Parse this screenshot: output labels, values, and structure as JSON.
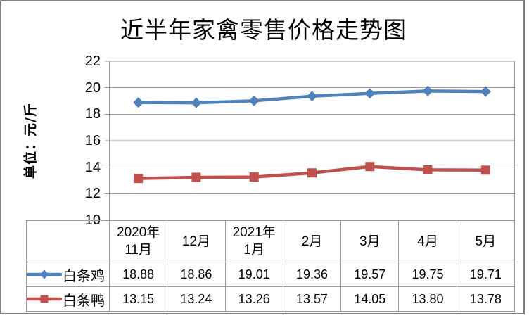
{
  "chart_data": {
    "type": "line",
    "title": "近半年家禽零售价格走势图",
    "ylabel": "单位：元/斤",
    "categories": [
      "2020年11月",
      "12月",
      "2021年1月",
      "2月",
      "3月",
      "4月",
      "5月"
    ],
    "categories_display": [
      [
        "2020年",
        "11月"
      ],
      [
        "12月"
      ],
      [
        "2021年",
        "1月"
      ],
      [
        "2月"
      ],
      [
        "3月"
      ],
      [
        "4月"
      ],
      [
        "5月"
      ]
    ],
    "series": [
      {
        "name": "白条鸡",
        "marker": "diamond",
        "color": "#4F81BD",
        "values": [
          18.88,
          18.86,
          19.01,
          19.36,
          19.57,
          19.75,
          19.71
        ],
        "labels": [
          "18.88",
          "18.86",
          "19.01",
          "19.36",
          "19.57",
          "19.75",
          "19.71"
        ]
      },
      {
        "name": "白条鸭",
        "marker": "square",
        "color": "#C0504D",
        "values": [
          13.15,
          13.24,
          13.26,
          13.57,
          14.05,
          13.8,
          13.78
        ],
        "labels": [
          "13.15",
          "13.24",
          "13.26",
          "13.57",
          "14.05",
          "13.80",
          "13.78"
        ]
      }
    ],
    "ylim": [
      10,
      22
    ],
    "yticks": [
      22,
      20,
      18,
      16,
      14,
      12,
      10
    ],
    "grid": true,
    "legend_position": "left-of-data-table",
    "data_table_shown": true
  },
  "colors": {
    "grid": "#9a9a9a",
    "axis": "#9a9a9a",
    "table_border": "#9a9a9a",
    "frame_border": "#7f7f7f",
    "text": "#000000",
    "background": "#ffffff"
  }
}
